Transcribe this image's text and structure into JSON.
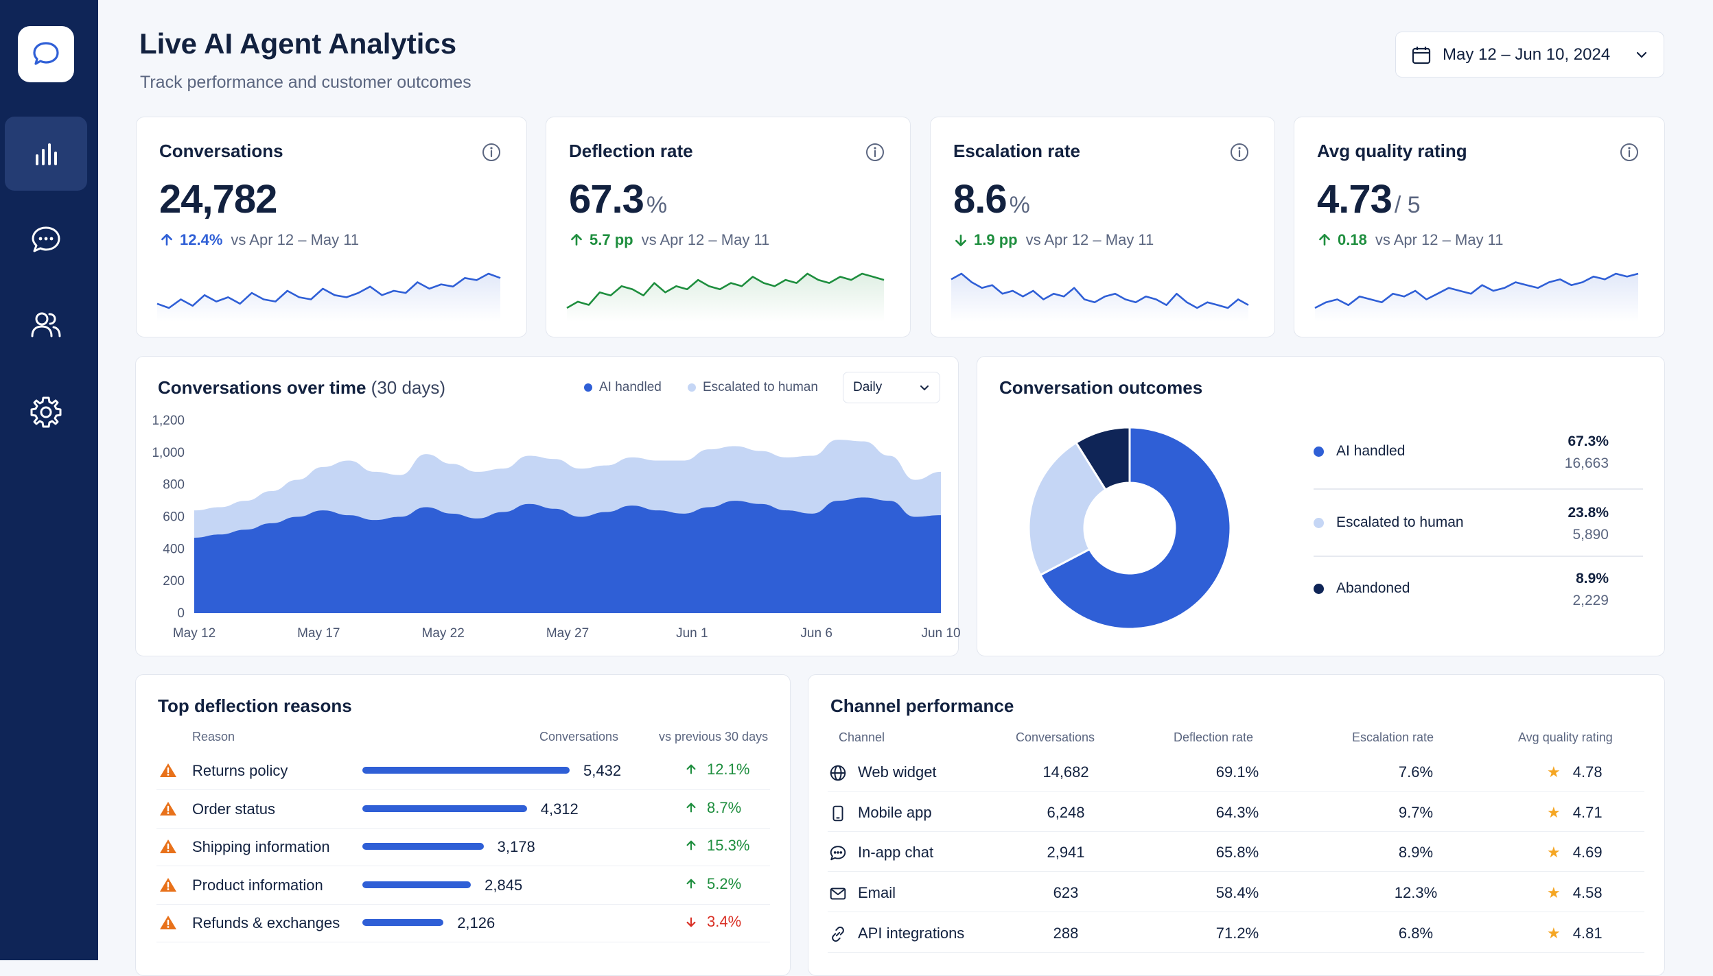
{
  "header": {
    "title": "Live AI Agent Analytics",
    "subtitle": "Track performance and customer outcomes",
    "date_range": "May 12 – Jun 10, 2024"
  },
  "sidebar": {
    "items": [
      {
        "name": "analytics",
        "active": true
      },
      {
        "name": "conversations",
        "active": false
      },
      {
        "name": "users",
        "active": false
      },
      {
        "name": "settings",
        "active": false
      }
    ]
  },
  "kpis": [
    {
      "title": "Conversations",
      "value": "24,782",
      "unit": "",
      "delta": "12.4%",
      "direction": "up",
      "compare": "vs Apr 12 – May 11",
      "color": "#2f5fd6"
    },
    {
      "title": "Deflection rate",
      "value": "67.3",
      "unit": "%",
      "delta": "5.7 pp",
      "direction": "up",
      "compare": "vs Apr 12 – May 11",
      "color": "#1e8e3e"
    },
    {
      "title": "Escalation rate",
      "value": "8.6",
      "unit": "%",
      "delta": "1.9 pp",
      "direction": "down",
      "compare": "vs Apr 12 – May 11",
      "color": "#1e8e3e"
    },
    {
      "title": "Avg quality rating",
      "value": "4.73",
      "unit": "/ 5",
      "delta": "0.18",
      "direction": "up",
      "compare": "vs Apr 12 – May 11",
      "color": "#1e8e3e"
    }
  ],
  "colors": {
    "primary": "#2f5fd6",
    "light": "#c5d6f5",
    "navy": "#0f2557",
    "positive": "#1e8e3e",
    "negative": "#d93025",
    "warning": "#e8711a",
    "star": "#f5a623"
  },
  "conversations_chart": {
    "title": "Conversations over time",
    "title_suffix": "(30 days)",
    "legend": [
      "AI handled",
      "Escalated to human"
    ],
    "granularity": "Daily"
  },
  "chart_data": {
    "type": "area",
    "stacked": true,
    "x_ticks": [
      "May 12",
      "May 17",
      "May 22",
      "May 27",
      "Jun 1",
      "Jun 6",
      "Jun 10"
    ],
    "y_ticks": [
      "1,200",
      "1,000",
      "800",
      "600",
      "400",
      "200",
      "0"
    ],
    "ylim": [
      0,
      1200
    ],
    "series": [
      {
        "name": "AI handled",
        "values": [
          470,
          490,
          520,
          560,
          600,
          640,
          610,
          580,
          600,
          660,
          620,
          590,
          630,
          680,
          650,
          600,
          630,
          670,
          640,
          620,
          660,
          700,
          680,
          640,
          620,
          700,
          720,
          700,
          600,
          610
        ]
      },
      {
        "name": "Escalated to human",
        "values": [
          170,
          170,
          180,
          200,
          230,
          270,
          340,
          300,
          260,
          330,
          310,
          290,
          270,
          300,
          310,
          300,
          290,
          300,
          310,
          330,
          360,
          340,
          330,
          330,
          360,
          380,
          350,
          280,
          230,
          270
        ]
      }
    ]
  },
  "outcomes": {
    "title": "Conversation outcomes",
    "items": [
      {
        "label": "AI handled",
        "pct": "67.3%",
        "count": "16,663",
        "value": 67.3,
        "color": "#2f5fd6"
      },
      {
        "label": "Escalated to human",
        "pct": "23.8%",
        "count": "5,890",
        "value": 23.8,
        "color": "#c5d6f5"
      },
      {
        "label": "Abandoned",
        "pct": "8.9%",
        "count": "2,229",
        "value": 8.9,
        "color": "#0f2557"
      }
    ]
  },
  "deflection": {
    "title": "Top deflection reasons",
    "headers": {
      "reason": "Reason",
      "conversations": "Conversations",
      "change": "vs previous 30 days"
    },
    "rows": [
      {
        "reason": "Returns policy",
        "count": "5,432",
        "value": 5432,
        "change": "12.1%",
        "direction": "up"
      },
      {
        "reason": "Order status",
        "count": "4,312",
        "value": 4312,
        "change": "8.7%",
        "direction": "up"
      },
      {
        "reason": "Shipping information",
        "count": "3,178",
        "value": 3178,
        "change": "15.3%",
        "direction": "up"
      },
      {
        "reason": "Product information",
        "count": "2,845",
        "value": 2845,
        "change": "5.2%",
        "direction": "up"
      },
      {
        "reason": "Refunds & exchanges",
        "count": "2,126",
        "value": 2126,
        "change": "3.4%",
        "direction": "down"
      }
    ]
  },
  "channels": {
    "title": "Channel performance",
    "headers": {
      "channel": "Channel",
      "conversations": "Conversations",
      "deflection": "Deflection rate",
      "escalation": "Escalation rate",
      "quality": "Avg quality rating"
    },
    "rows": [
      {
        "icon": "globe-icon",
        "channel": "Web widget",
        "conversations": "14,682",
        "deflection": "69.1%",
        "escalation": "7.6%",
        "quality": "4.78"
      },
      {
        "icon": "mobile-icon",
        "channel": "Mobile app",
        "conversations": "6,248",
        "deflection": "64.3%",
        "escalation": "9.7%",
        "quality": "4.71"
      },
      {
        "icon": "chat-icon",
        "channel": "In-app chat",
        "conversations": "2,941",
        "deflection": "65.8%",
        "escalation": "8.9%",
        "quality": "4.69"
      },
      {
        "icon": "mail-icon",
        "channel": "Email",
        "conversations": "623",
        "deflection": "58.4%",
        "escalation": "12.3%",
        "quality": "4.58"
      },
      {
        "icon": "link-icon",
        "channel": "API integrations",
        "conversations": "288",
        "deflection": "71.2%",
        "escalation": "6.8%",
        "quality": "4.81"
      }
    ]
  }
}
